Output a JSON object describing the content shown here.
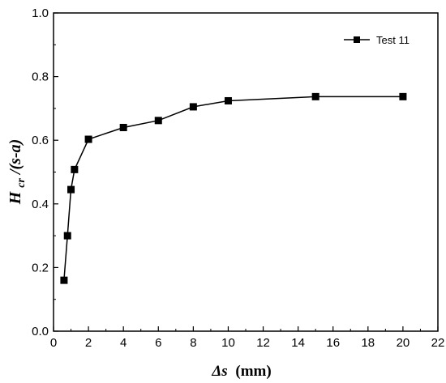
{
  "chart_data": {
    "type": "line",
    "series": [
      {
        "name": "Test 11",
        "x": [
          0.6,
          0.8,
          1.0,
          1.2,
          2,
          4,
          6,
          8,
          10,
          15,
          20
        ],
        "y": [
          0.16,
          0.3,
          0.445,
          0.508,
          0.603,
          0.64,
          0.662,
          0.705,
          0.724,
          0.737,
          0.737
        ]
      }
    ],
    "xlabel_symbol": "Δs",
    "xlabel_unit": "(mm)",
    "ylabel_main": "H",
    "ylabel_sub": "cr",
    "ylabel_tail": "/(s-a)",
    "xlim": [
      0,
      22
    ],
    "ylim": [
      0.0,
      1.0
    ],
    "xticks": [
      0,
      2,
      4,
      6,
      8,
      10,
      12,
      14,
      16,
      18,
      20,
      22
    ],
    "yticks": [
      0.0,
      0.2,
      0.4,
      0.6,
      0.8,
      1.0
    ],
    "xtick_labels": [
      "0",
      "2",
      "4",
      "6",
      "8",
      "10",
      "12",
      "14",
      "16",
      "18",
      "20",
      "22"
    ],
    "ytick_labels": [
      "0.0",
      "0.2",
      "0.4",
      "0.6",
      "0.8",
      "1.0"
    ],
    "legend": "top-right",
    "grid": false,
    "line_color": "#000000",
    "marker": "square"
  }
}
